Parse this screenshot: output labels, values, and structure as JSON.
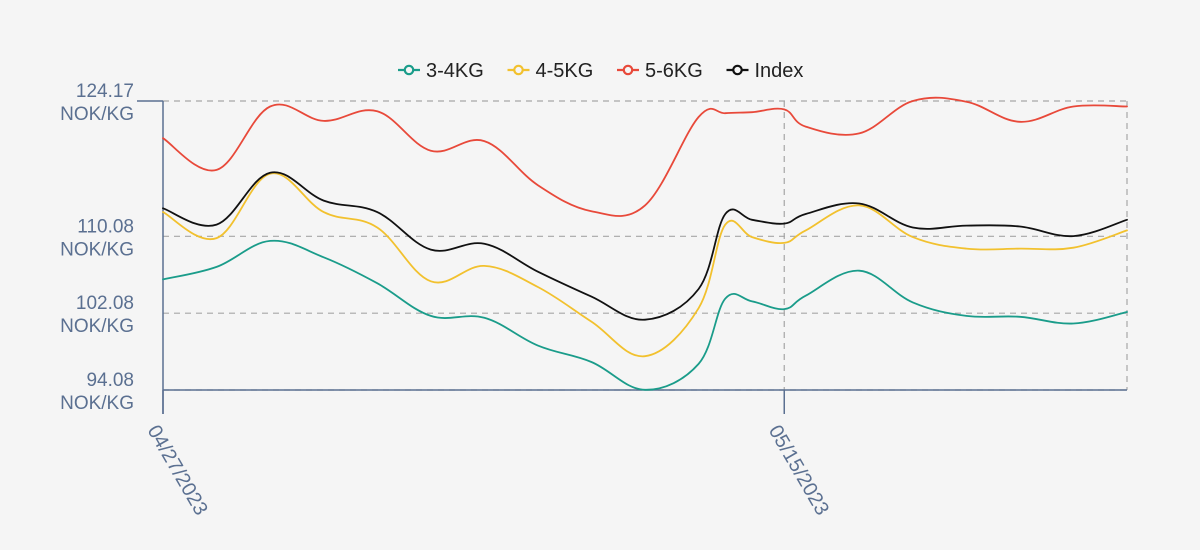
{
  "chart_data": {
    "type": "line",
    "title": "",
    "xlabel": "",
    "ylabel": "",
    "legend_position": "top-center",
    "grid": true,
    "y_axis": {
      "min": 94.08,
      "max": 124.17,
      "ticks": [
        {
          "value": 94.08,
          "label": "94.08",
          "unit": "NOK/KG"
        },
        {
          "value": 102.08,
          "label": "102.08",
          "unit": "NOK/KG"
        },
        {
          "value": 110.08,
          "label": "110.08",
          "unit": "NOK/KG"
        },
        {
          "value": 124.17,
          "label": "124.17",
          "unit": "NOK/KG"
        }
      ]
    },
    "x_axis": {
      "ticks": [
        {
          "index": 0,
          "label": "04/27/2023"
        },
        {
          "index": 11.6,
          "label": "05/15/2023"
        }
      ]
    },
    "x": [
      0,
      1,
      2,
      3,
      4,
      5,
      6,
      7,
      8,
      9,
      10,
      10.5,
      11,
      11.6,
      12,
      13,
      14,
      15,
      16,
      17,
      18
    ],
    "series": [
      {
        "name": "3-4KG",
        "color": "#1a9c8a",
        "values": [
          105.6,
          106.9,
          109.6,
          107.9,
          105.2,
          101.8,
          101.6,
          98.7,
          97.0,
          94.1,
          96.8,
          103.6,
          103.3,
          102.5,
          103.9,
          106.5,
          103.2,
          101.8,
          101.7,
          101.0,
          102.2
        ]
      },
      {
        "name": "4-5KG",
        "color": "#f2c12e",
        "values": [
          112.6,
          109.9,
          116.6,
          112.6,
          111.0,
          105.4,
          107.0,
          104.8,
          101.2,
          97.6,
          102.6,
          111.3,
          110.0,
          109.4,
          110.7,
          113.3,
          110.0,
          108.8,
          108.8,
          108.9,
          110.7
        ]
      },
      {
        "name": "5-6KG",
        "color": "#e8493a",
        "values": [
          120.3,
          117.0,
          123.6,
          122.1,
          123.1,
          119.0,
          120.0,
          115.4,
          112.7,
          113.3,
          122.5,
          122.9,
          123.0,
          123.3,
          121.5,
          120.8,
          124.2,
          124.1,
          122.0,
          123.6,
          123.6
        ]
      },
      {
        "name": "Index",
        "color": "#111111",
        "values": [
          113.0,
          111.3,
          116.7,
          113.8,
          112.6,
          108.7,
          109.3,
          106.4,
          103.8,
          101.4,
          104.6,
          112.4,
          111.8,
          111.4,
          112.4,
          113.5,
          111.0,
          111.2,
          111.1,
          110.1,
          111.8
        ]
      }
    ]
  }
}
